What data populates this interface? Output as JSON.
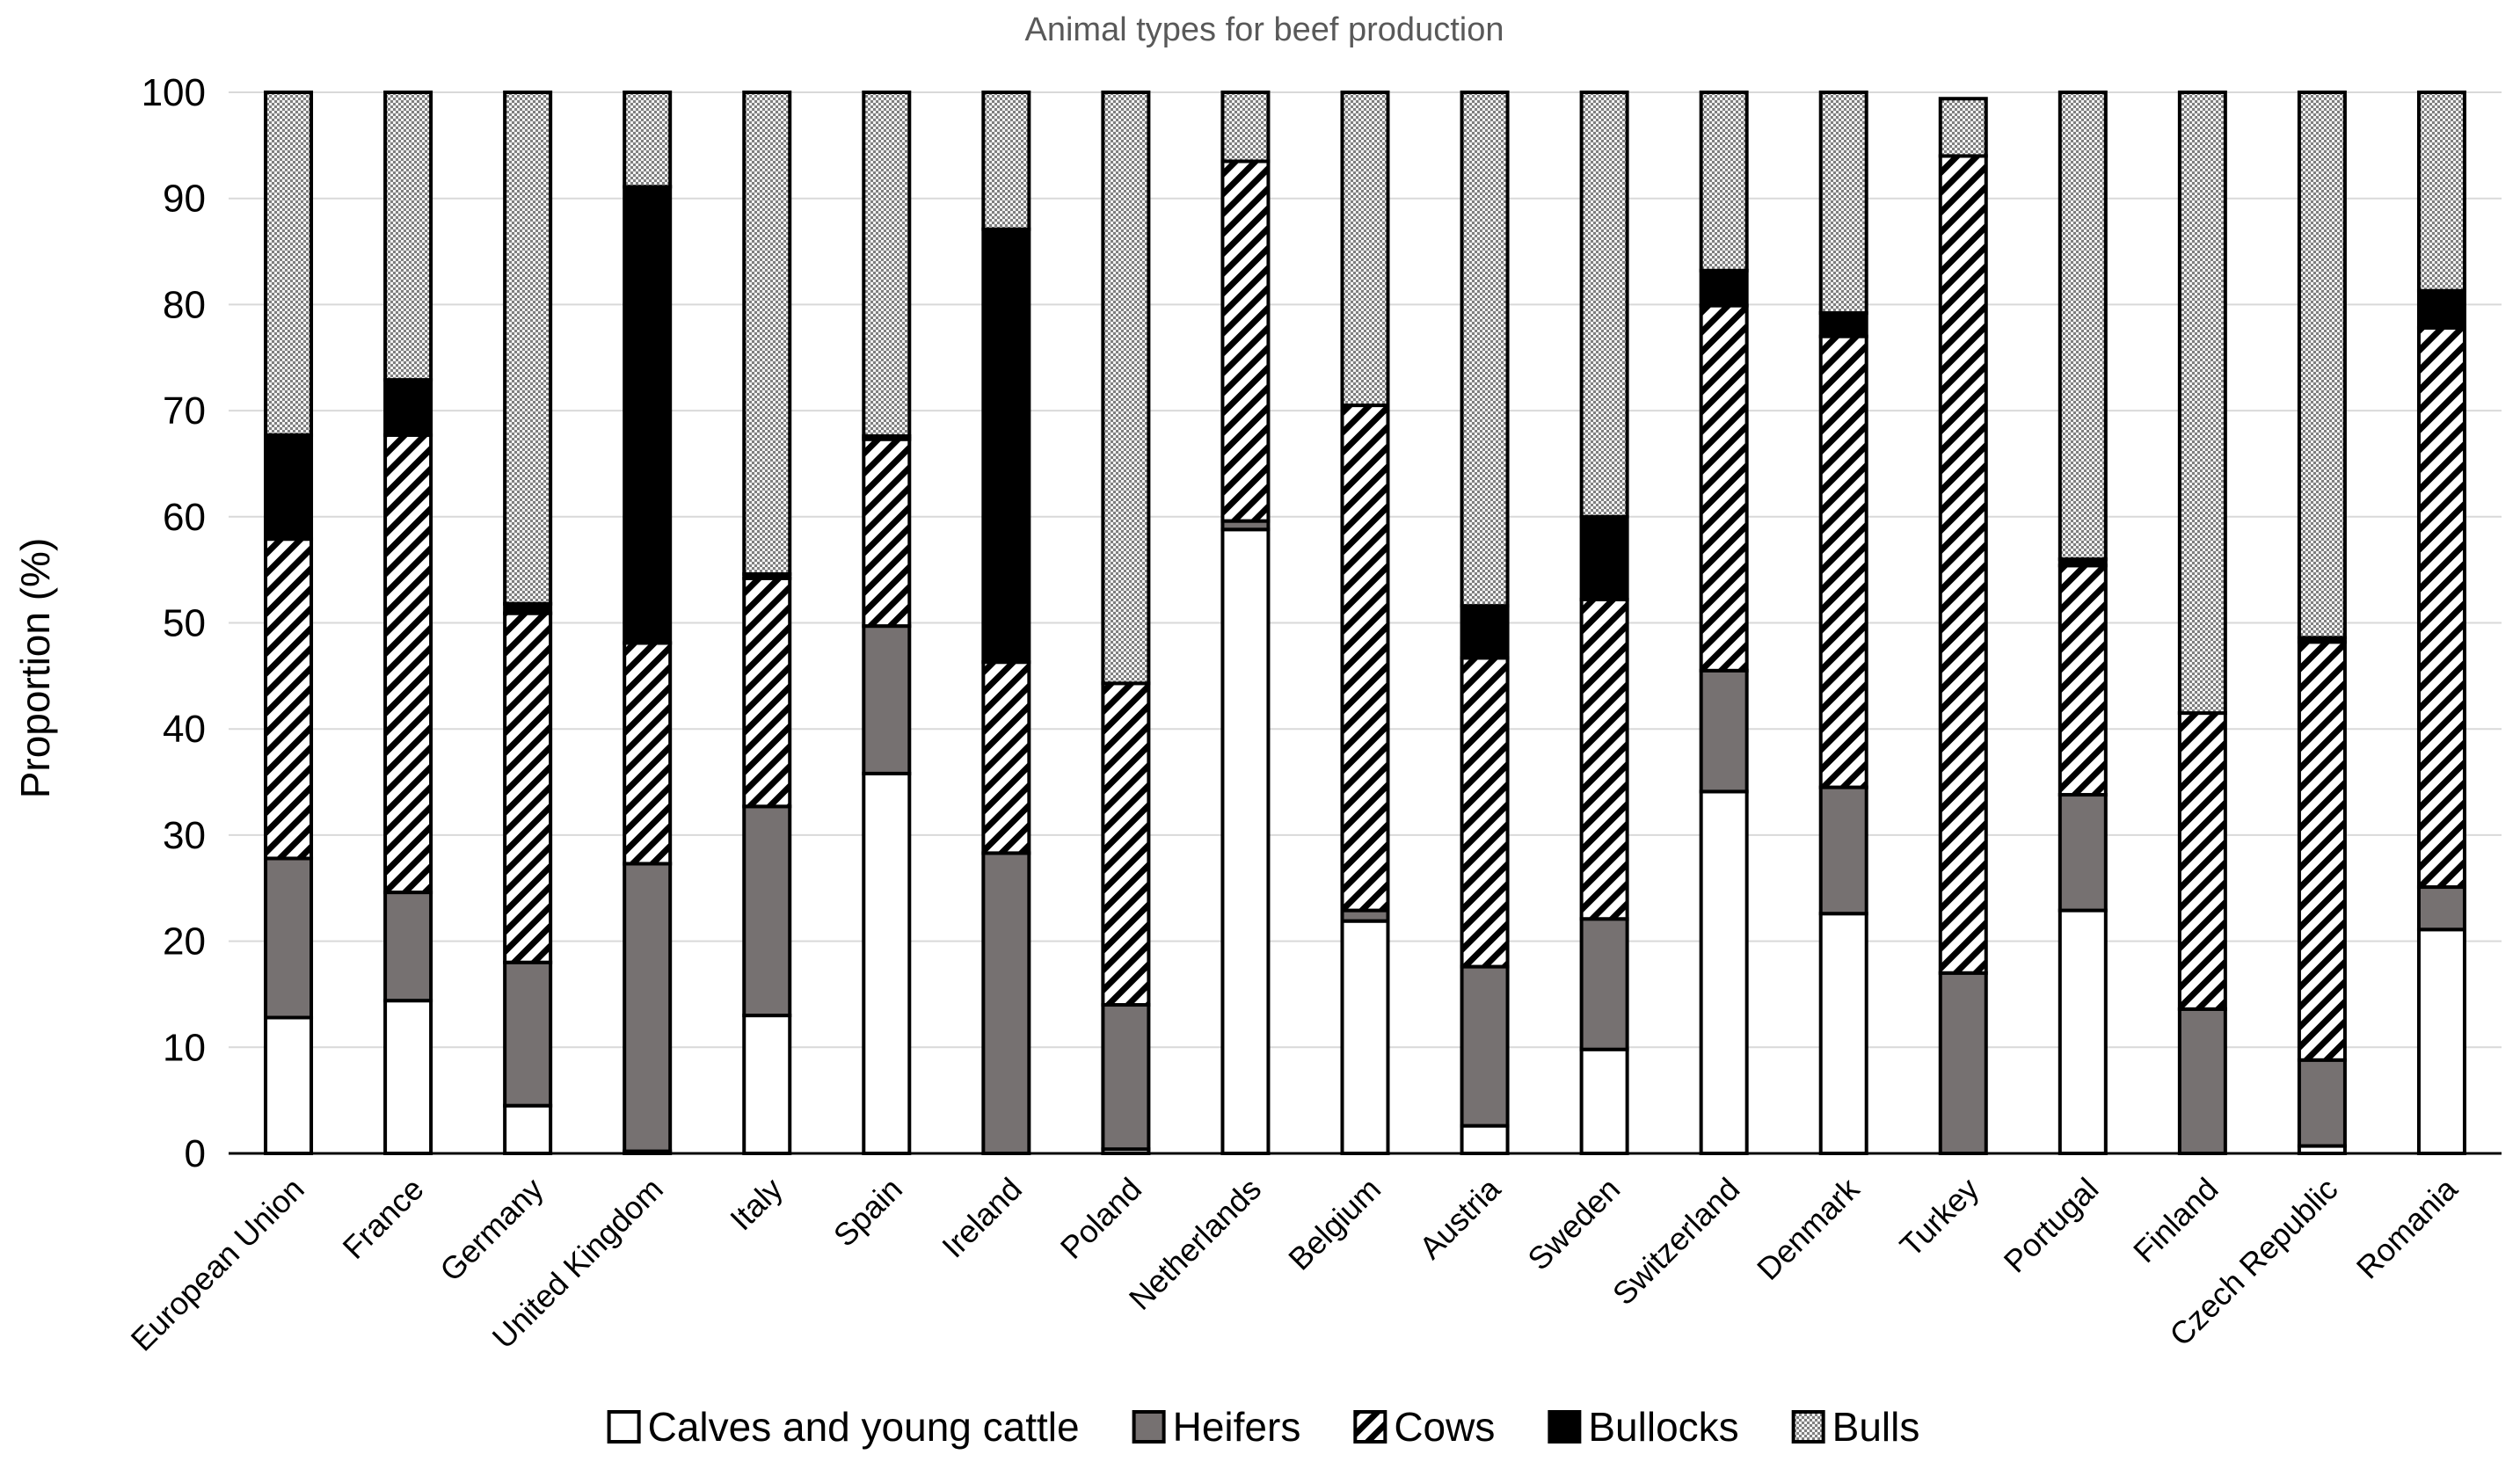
{
  "chart_data": {
    "type": "bar",
    "stacked": true,
    "title": "Animal types for beef production",
    "xlabel": "",
    "ylabel": "Proportion (%)",
    "ylim": [
      0,
      100
    ],
    "yticks": [
      0,
      10,
      20,
      30,
      40,
      50,
      60,
      70,
      80,
      90,
      100
    ],
    "grid": true,
    "legend_position": "bottom",
    "categories": [
      "European Union",
      "France",
      "Germany",
      "United Kingdom",
      "Italy",
      "Spain",
      "Ireland",
      "Poland",
      "Netherlands",
      "Belgium",
      "Austria",
      "Sweden",
      "Switzerland",
      "Denmark",
      "Turkey",
      "Portugal",
      "Finland",
      "Czech Republic",
      "Romania"
    ],
    "series": [
      {
        "name": "Calves and young cattle",
        "pattern": "white",
        "values": [
          12.8,
          14.4,
          4.5,
          0.2,
          13,
          35.8,
          0,
          0.4,
          58.8,
          21.9,
          2.6,
          9.8,
          34.1,
          22.6,
          0,
          22.9,
          0,
          0.7,
          21.1
        ]
      },
      {
        "name": "Heifers",
        "pattern": "gray",
        "values": [
          15,
          10.2,
          13.5,
          27.1,
          19.7,
          13.9,
          28.3,
          13.6,
          0.8,
          1,
          15,
          12.3,
          11.4,
          11.9,
          17,
          10.9,
          13.6,
          8.1,
          4
        ]
      },
      {
        "name": "Cows",
        "pattern": "diagonal",
        "values": [
          30.1,
          43.1,
          32.9,
          20.8,
          21.5,
          17.6,
          18,
          30.3,
          33.9,
          47.6,
          29.1,
          30.1,
          34.4,
          42.5,
          77,
          21.6,
          27.9,
          39.4,
          52.7
        ]
      },
      {
        "name": "Bullocks",
        "pattern": "black",
        "values": [
          9.8,
          5.2,
          0.9,
          43,
          0.4,
          0.3,
          40.8,
          0,
          0,
          0,
          4.9,
          7.8,
          3.3,
          2.2,
          0,
          0.6,
          0,
          0.4,
          3.5
        ]
      },
      {
        "name": "Bulls",
        "pattern": "checker",
        "values": [
          32.3,
          27.1,
          48.2,
          8.9,
          45.4,
          32.4,
          12.9,
          55.7,
          6.5,
          29.5,
          48.4,
          40,
          16.8,
          20.8,
          5.4,
          44,
          58.5,
          51.4,
          18.7
        ]
      }
    ]
  }
}
